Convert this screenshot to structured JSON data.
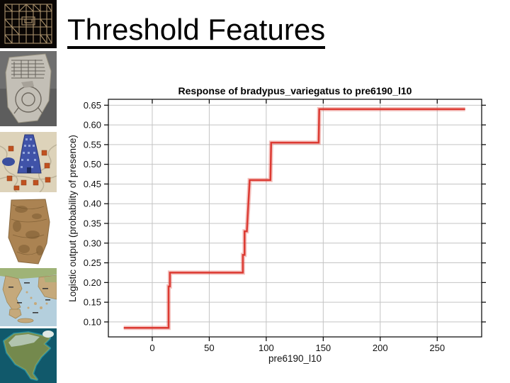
{
  "slide": {
    "title": "Threshold Features"
  },
  "sidebar": {
    "images": [
      {
        "name": "ancient-grid-city-plan-map",
        "colors": [
          "#0a0604",
          "#b49a72"
        ]
      },
      {
        "name": "babylonian-clay-tablet-world-map",
        "colors": [
          "#757575",
          "#c6c2ba"
        ]
      },
      {
        "name": "medieval-tower-of-babel-map",
        "colors": [
          "#ddd3ba",
          "#4053a8",
          "#c0511f"
        ]
      },
      {
        "name": "old-parchment-portolan-map",
        "colors": [
          "#ffffff",
          "#ab8352"
        ]
      },
      {
        "name": "greece-aegean-topographic-map",
        "colors": [
          "#b4cfdd",
          "#c5a97b",
          "#9fb377"
        ]
      },
      {
        "name": "north-america-satellite-map",
        "colors": [
          "#11596b",
          "#74894d",
          "#37b6c6"
        ]
      }
    ]
  },
  "chart_data": {
    "type": "line",
    "title": "Response of bradypus_variegatus to pre6190_l10",
    "xlabel": "pre6190_l10",
    "ylabel": "Logistic output (probability of presence)",
    "xlim": [
      -38.5,
      289
    ],
    "ylim": [
      0.062,
      0.665
    ],
    "xticks": [
      0,
      50,
      100,
      150,
      200,
      250
    ],
    "yticks": [
      0.1,
      0.15,
      0.2,
      0.25,
      0.3,
      0.35,
      0.4,
      0.45,
      0.5,
      0.55,
      0.6,
      0.65
    ],
    "grid": true,
    "legend": "none",
    "line_color": "#dc3a32",
    "grid_color": "#c4c4c4",
    "series": [
      {
        "name": "bradypus_variegatus",
        "points": [
          [
            -25,
            0.085
          ],
          [
            14.3,
            0.085
          ],
          [
            14.3,
            0.19
          ],
          [
            15.5,
            0.19
          ],
          [
            15.5,
            0.225
          ],
          [
            79.5,
            0.225
          ],
          [
            79.5,
            0.27
          ],
          [
            81,
            0.27
          ],
          [
            81,
            0.33
          ],
          [
            83,
            0.33
          ],
          [
            85.5,
            0.46
          ],
          [
            103.7,
            0.46
          ],
          [
            104.3,
            0.555
          ],
          [
            146,
            0.555
          ],
          [
            146.5,
            0.64
          ],
          [
            274.5,
            0.64
          ]
        ]
      }
    ]
  }
}
